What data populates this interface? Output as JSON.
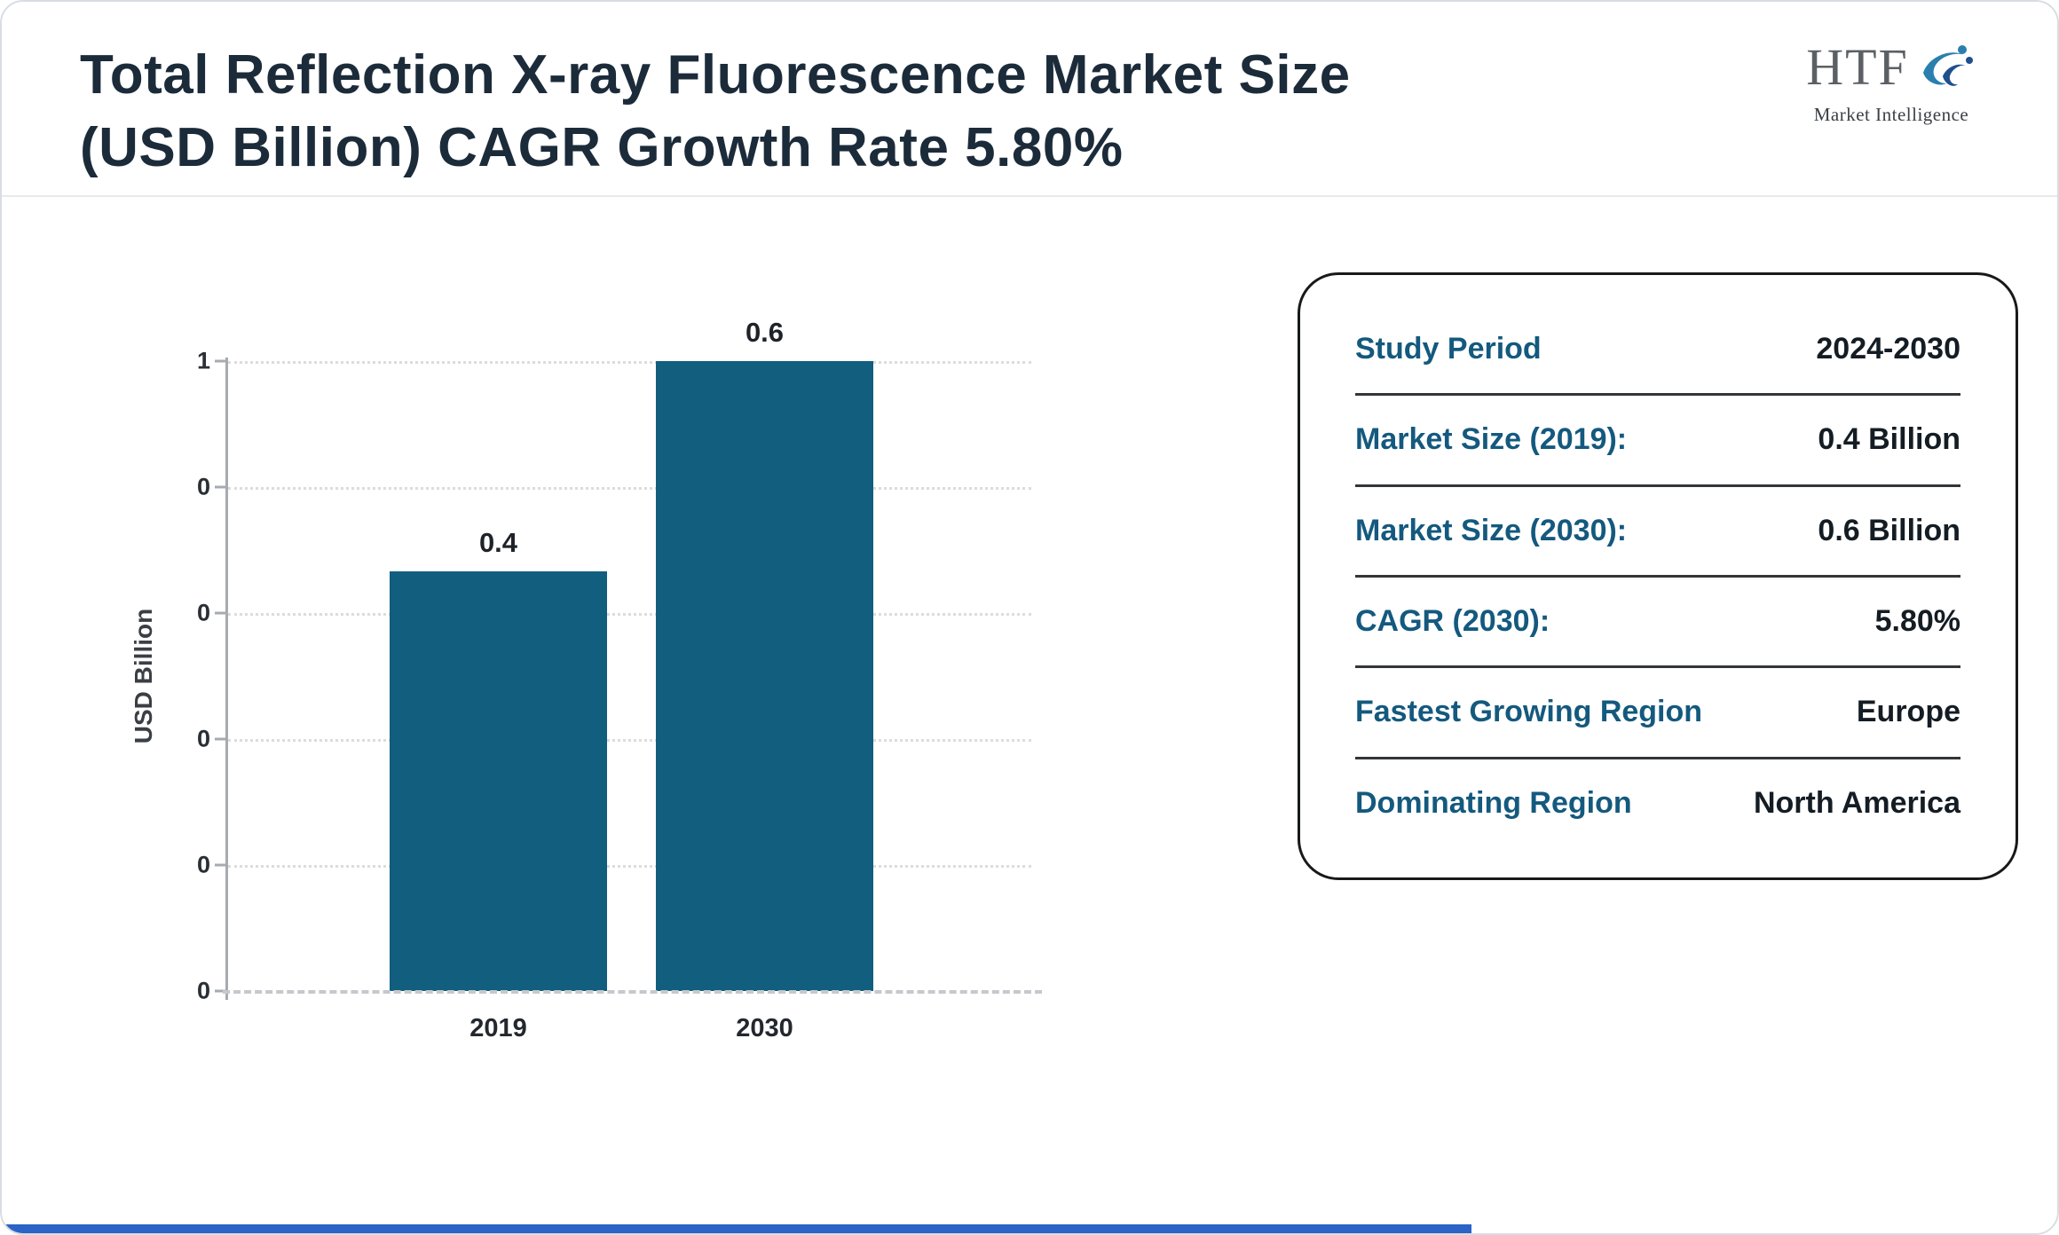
{
  "header": {
    "title_line1": "Total Reflection X-ray Fluorescence Market Size",
    "title_line2": "(USD Billion) CAGR Growth Rate 5.80%",
    "logo": {
      "text": "HTF",
      "subtext": "Market Intelligence"
    }
  },
  "chart_data": {
    "type": "bar",
    "title": "Total Reflection X-ray Fluorescence Market Size (USD Billion) CAGR Growth Rate 5.80%",
    "categories": [
      "2019",
      "2030"
    ],
    "values": [
      0.4,
      0.6
    ],
    "value_labels": [
      "0.4",
      "0.6"
    ],
    "xlabel": "",
    "ylabel": "USD Billion",
    "ylim": [
      0,
      1
    ],
    "ytick_labels_top_to_bottom": [
      "1",
      "0",
      "0",
      "0",
      "0",
      "0"
    ],
    "grid": "horizontal dotted",
    "legend": "none",
    "bar_color": "#115e7e"
  },
  "info_panel": {
    "rows": [
      {
        "label": "Study Period",
        "value": "2024-2030"
      },
      {
        "label": "Market Size (2019):",
        "value": "0.4 Billion"
      },
      {
        "label": "Market Size (2030):",
        "value": "0.6 Billion"
      },
      {
        "label": "CAGR (2030):",
        "value": "5.80%"
      },
      {
        "label": "Fastest Growing Region",
        "value": "Europe"
      },
      {
        "label": "Dominating Region",
        "value": "North America"
      }
    ]
  },
  "colors": {
    "bar-color": "#115e7e",
    "label-color": "#14597e",
    "accent-color": "#2b63c6",
    "title-color": "#1c2b3a"
  }
}
